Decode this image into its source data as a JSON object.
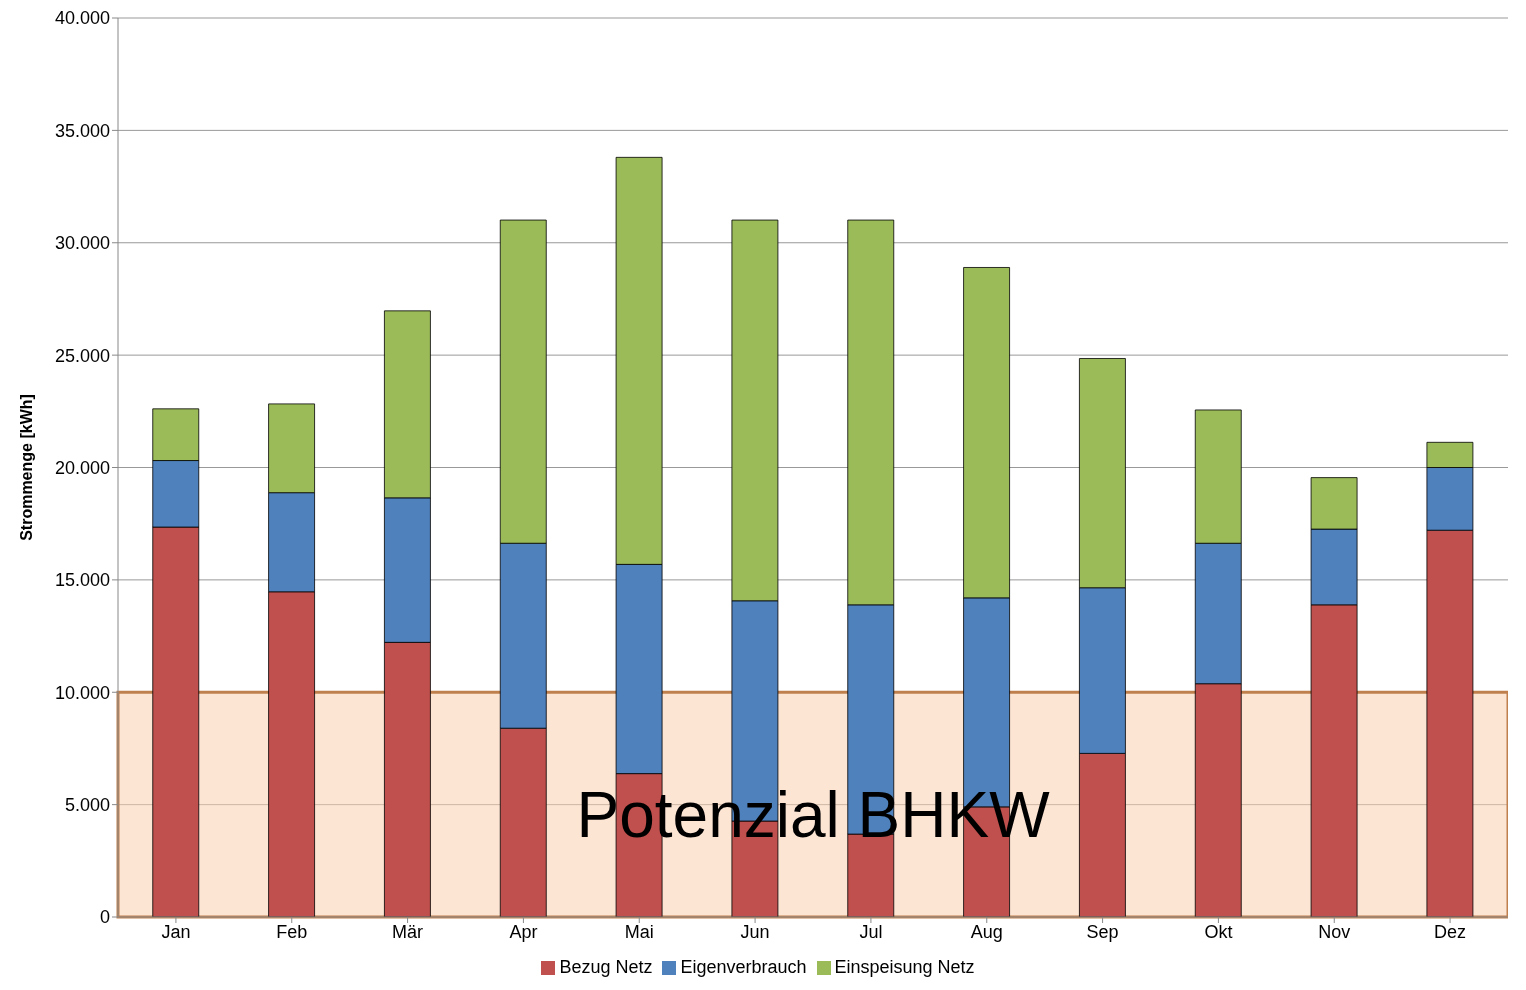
{
  "chart_data": {
    "type": "bar",
    "stacked": true,
    "ylabel": "Strommenge [kWh]",
    "categories": [
      "Jan",
      "Feb",
      "Mär",
      "Apr",
      "Mai",
      "Jun",
      "Jul",
      "Aug",
      "Sep",
      "Okt",
      "Nov",
      "Dez"
    ],
    "series": [
      {
        "name": "Bezug Netz",
        "color": "#c0504d",
        "values": [
          17350,
          14470,
          12220,
          8400,
          6380,
          4270,
          3690,
          4900,
          7280,
          10380,
          13890,
          17210
        ]
      },
      {
        "name": "Eigenverbrauch",
        "color": "#4f81bd",
        "values": [
          2960,
          4410,
          6430,
          8230,
          9310,
          9800,
          10200,
          9300,
          7370,
          6250,
          3370,
          2790
        ]
      },
      {
        "name": "Einspeisung Netz",
        "color": "#9bbb59",
        "values": [
          2300,
          3950,
          8320,
          14380,
          18110,
          16940,
          17120,
          14700,
          10200,
          5930,
          2290,
          1120
        ]
      }
    ],
    "ylim": [
      0,
      40000
    ],
    "yticks": [
      {
        "value": 0,
        "label": "0"
      },
      {
        "value": 5000,
        "label": "5.000"
      },
      {
        "value": 10000,
        "label": "10.000"
      },
      {
        "value": 15000,
        "label": "15.000"
      },
      {
        "value": 20000,
        "label": "20.000"
      },
      {
        "value": 25000,
        "label": "25.000"
      },
      {
        "value": 30000,
        "label": "30.000"
      },
      {
        "value": 35000,
        "label": "35.000"
      },
      {
        "value": 40000,
        "label": "40.000"
      }
    ],
    "bands": [
      {
        "axis": "y",
        "from": 0,
        "to": 10000,
        "label": "Potenzial BHKW",
        "color": "#fbd0b0"
      }
    ],
    "grid": "y",
    "legend": "bottom"
  }
}
